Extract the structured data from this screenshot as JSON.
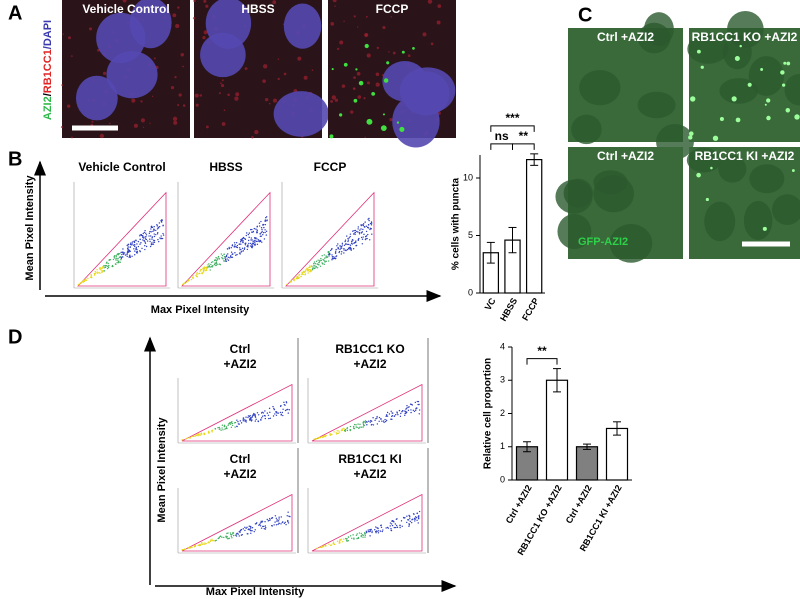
{
  "panel_labels": [
    "A",
    "B",
    "C",
    "D"
  ],
  "panel_a": {
    "stain_label": [
      "AZI2",
      "/",
      "RB1CC1",
      "/DAPI"
    ],
    "images": [
      "Vehicle Control",
      "HBSS",
      "FCCP"
    ]
  },
  "panel_b": {
    "plots": [
      "Vehicle Control",
      "HBSS",
      "FCCP"
    ],
    "ylabel": "Mean Pixel Intensity",
    "xlabel": "Max Pixel Intensity"
  },
  "panel_c": {
    "images": [
      "Ctrl +AZI2",
      "RB1CC1 KO +AZI2",
      "Ctrl +AZI2",
      "RB1CC1 KI +AZI2"
    ],
    "channel": "GFP-AZI2"
  },
  "panel_d": {
    "plots": [
      [
        "Ctrl",
        "+AZI2"
      ],
      [
        "RB1CC1 KO",
        "+AZI2"
      ],
      [
        "Ctrl",
        "+AZI2"
      ],
      [
        "RB1CC1 KI",
        "+AZI2"
      ]
    ],
    "ylabel": "Mean Pixel Intensity",
    "xlabel": "Max Pixel Intensity"
  },
  "chart_data": [
    {
      "type": "bar",
      "ylabel": "% cells with puncta",
      "categories": [
        "VC",
        "HBSS",
        "FCCP"
      ],
      "values": [
        3.5,
        4.6,
        11.6
      ],
      "errors": [
        0.9,
        1.1,
        0.5
      ],
      "colors": [
        "#ffffff",
        "#ffffff",
        "#ffffff"
      ],
      "ylim": [
        0,
        12
      ],
      "yticks": [
        0,
        5,
        10
      ],
      "significance": [
        {
          "label": "***",
          "pair": [
            0,
            2
          ]
        },
        {
          "label": "ns",
          "pair": [
            0,
            1
          ]
        },
        {
          "label": "**",
          "pair": [
            1,
            2
          ]
        }
      ]
    },
    {
      "type": "bar",
      "ylabel": "Relative cell proportion",
      "categories": [
        "Ctrl +AZI2",
        "RB1CC1 KO +AZI2",
        "Ctrl +AZI2",
        "RB1CC1 KI +AZI2"
      ],
      "values": [
        1.0,
        3.0,
        1.0,
        1.55
      ],
      "errors": [
        0.15,
        0.35,
        0.08,
        0.2
      ],
      "colors": [
        "#808080",
        "#ffffff",
        "#808080",
        "#ffffff"
      ],
      "ylim": [
        0,
        4
      ],
      "yticks": [
        0,
        1,
        2,
        3,
        4
      ],
      "significance": [
        {
          "label": "**",
          "pair": [
            0,
            1
          ]
        }
      ]
    }
  ]
}
